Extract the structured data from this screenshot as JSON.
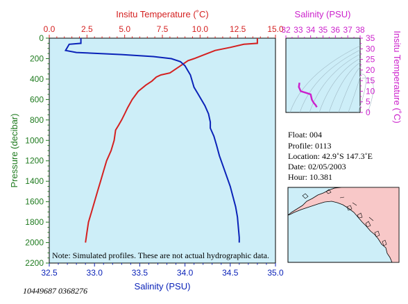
{
  "colors": {
    "temperature": "#d42020",
    "salinity": "#0a22b8",
    "pressure_axis": "#1e7a1e",
    "ts_axis": "#cc22cc",
    "plot_bg": "#cdeef8",
    "land": "#f8c8c8",
    "map_water": "#cdeef8"
  },
  "chart_data": [
    {
      "type": "line",
      "title": "",
      "top_axis": {
        "label": "Insitu Temperature (˚C)",
        "range": [
          0,
          15
        ],
        "ticks": [
          "0.0",
          "2.5",
          "5.0",
          "7.5",
          "10.0",
          "12.5",
          "15.0"
        ]
      },
      "bottom_axis": {
        "label": "Salinity (PSU)",
        "range": [
          32.5,
          35.0
        ],
        "ticks": [
          "32.5",
          "33.0",
          "33.5",
          "34.0",
          "34.5",
          "35.0"
        ]
      },
      "left_axis": {
        "label": "Pressure (decibar)",
        "range": [
          0,
          2200
        ],
        "inverted": true,
        "ticks": [
          "0",
          "200",
          "400",
          "600",
          "800",
          "1000",
          "1200",
          "1400",
          "1600",
          "1800",
          "2000",
          "2200"
        ]
      },
      "series": [
        {
          "name": "Insitu Temperature",
          "axis": "top",
          "points": [
            [
              13.8,
              0
            ],
            [
              13.8,
              50
            ],
            [
              12.9,
              60
            ],
            [
              12.0,
              90
            ],
            [
              11.0,
              120
            ],
            [
              10.3,
              160
            ],
            [
              9.6,
              200
            ],
            [
              9.2,
              220
            ],
            [
              8.8,
              260
            ],
            [
              8.4,
              300
            ],
            [
              8.0,
              340
            ],
            [
              7.4,
              360
            ],
            [
              7.1,
              380
            ],
            [
              6.8,
              420
            ],
            [
              6.4,
              460
            ],
            [
              5.9,
              520
            ],
            [
              5.5,
              600
            ],
            [
              5.2,
              680
            ],
            [
              5.0,
              740
            ],
            [
              4.8,
              800
            ],
            [
              4.6,
              850
            ],
            [
              4.4,
              900
            ],
            [
              4.3,
              1000
            ],
            [
              4.1,
              1100
            ],
            [
              3.8,
              1200
            ],
            [
              3.6,
              1300
            ],
            [
              3.4,
              1400
            ],
            [
              3.2,
              1500
            ],
            [
              3.0,
              1600
            ],
            [
              2.8,
              1700
            ],
            [
              2.6,
              1800
            ],
            [
              2.5,
              1900
            ],
            [
              2.4,
              2000
            ]
          ]
        },
        {
          "name": "Salinity",
          "axis": "bottom",
          "points": [
            [
              32.85,
              0
            ],
            [
              32.85,
              50
            ],
            [
              32.72,
              60
            ],
            [
              32.7,
              90
            ],
            [
              32.68,
              120
            ],
            [
              32.8,
              140
            ],
            [
              33.3,
              160
            ],
            [
              33.65,
              180
            ],
            [
              33.85,
              200
            ],
            [
              33.95,
              230
            ],
            [
              34.0,
              270
            ],
            [
              34.02,
              300
            ],
            [
              34.06,
              360
            ],
            [
              34.08,
              420
            ],
            [
              34.1,
              480
            ],
            [
              34.14,
              540
            ],
            [
              34.18,
              600
            ],
            [
              34.22,
              660
            ],
            [
              34.26,
              740
            ],
            [
              34.28,
              820
            ],
            [
              34.28,
              880
            ],
            [
              34.32,
              960
            ],
            [
              34.35,
              1050
            ],
            [
              34.38,
              1150
            ],
            [
              34.42,
              1250
            ],
            [
              34.46,
              1350
            ],
            [
              34.5,
              1450
            ],
            [
              34.53,
              1550
            ],
            [
              34.56,
              1650
            ],
            [
              34.58,
              1750
            ],
            [
              34.59,
              1850
            ],
            [
              34.6,
              1950
            ],
            [
              34.6,
              2000
            ]
          ]
        }
      ],
      "note": "Note: Simulated profiles.  These are not actual hydrographic data."
    },
    {
      "type": "scatter",
      "title": "",
      "x_axis": {
        "label": "Salinity (PSU)",
        "range": [
          32,
          38
        ],
        "ticks": [
          "32",
          "33",
          "34",
          "35",
          "36",
          "37",
          "38"
        ]
      },
      "y_axis": {
        "label": "Insitu Temperature (˚C)",
        "range": [
          0,
          35
        ],
        "ticks": [
          "0",
          "5",
          "10",
          "15",
          "20",
          "25",
          "30",
          "35"
        ]
      },
      "series": [
        {
          "name": "",
          "points": [
            [
              33.1,
              14
            ],
            [
              33.05,
              12
            ],
            [
              33.2,
              10
            ],
            [
              33.6,
              9.3
            ],
            [
              34.0,
              8.5
            ],
            [
              34.1,
              6
            ],
            [
              34.25,
              4.5
            ],
            [
              34.4,
              3.5
            ],
            [
              34.5,
              2.5
            ]
          ]
        }
      ]
    }
  ],
  "info": {
    "float": "Float:  004",
    "profile": "Profile:  0113",
    "location": "Location:  42.9˚S  147.3˚E",
    "date": "Date:  02/05/2003",
    "hour": "Hour:  10.381"
  },
  "footer_code": "10449687 0368276"
}
